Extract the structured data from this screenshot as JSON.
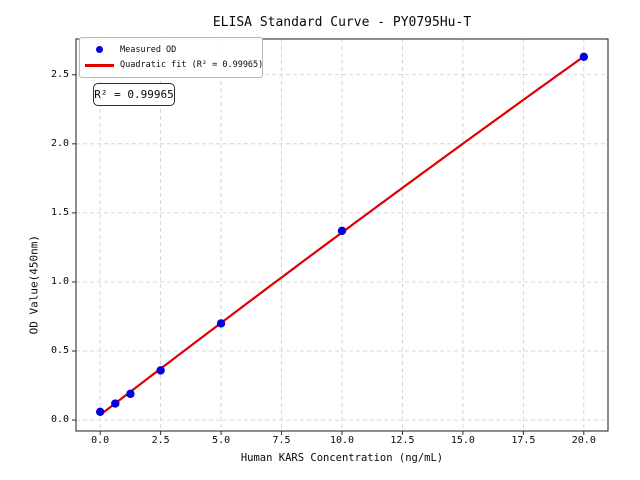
{
  "chart_data": {
    "type": "scatter",
    "title": "ELISA Standard Curve - PY0795Hu-T",
    "xlabel": "Human KARS Concentration (ng/mL)",
    "ylabel": "OD Value(450nm)",
    "xlim": [
      -1.0,
      21.0
    ],
    "ylim": [
      -0.079,
      2.759
    ],
    "grid": true,
    "grid_color": "#cdcdcd",
    "frame_color": "#2e2e2e",
    "background_color": "#ffffff",
    "legend_position": "upper-left",
    "xticks": {
      "values": [
        0,
        2.5,
        5,
        7.5,
        10,
        12.5,
        15,
        17.5,
        20
      ],
      "labels": [
        "0.0",
        "2.5",
        "5.0",
        "7.5",
        "10.0",
        "12.5",
        "15.0",
        "17.5",
        "20.0"
      ]
    },
    "yticks": {
      "values": [
        0,
        0.5,
        1,
        1.5,
        2,
        2.5
      ],
      "labels": [
        "0.0",
        "0.5",
        "1.0",
        "1.5",
        "2.0",
        "2.5"
      ]
    },
    "series": [
      {
        "name": "Measured OD",
        "type": "scatter",
        "color": "#0000e0",
        "x": [
          0,
          0.625,
          1.25,
          2.5,
          5,
          10,
          20
        ],
        "y": [
          0.06,
          0.12,
          0.19,
          0.36,
          0.7,
          1.37,
          2.63
        ]
      },
      {
        "name": "Quadratic fit (R² = 0.99965)",
        "type": "line",
        "fit": "quadratic",
        "color": "#e00000",
        "r_squared": 0.99965
      }
    ],
    "annotation": {
      "text": "R² = 0.99965"
    }
  }
}
